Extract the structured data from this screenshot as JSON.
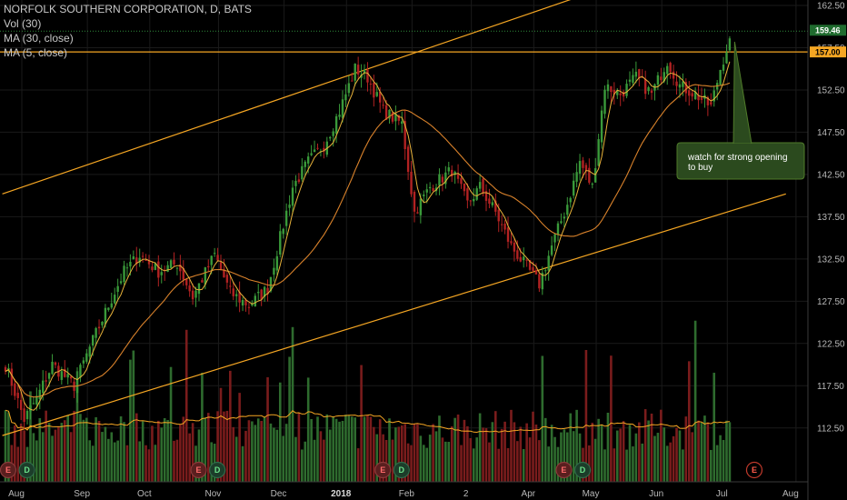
{
  "chart_data": {
    "type": "candlestick",
    "legend": {
      "symbol": "NORFOLK SOUTHERN CORPORATION, D, BATS",
      "vol": "Vol (30)",
      "ma30": "MA (30, close)",
      "ma5": "MA (5, close)"
    },
    "y_axis": {
      "range": [
        110,
        162.5
      ],
      "ticks": [
        "162.50",
        "157.50",
        "152.50",
        "147.50",
        "142.50",
        "137.50",
        "132.50",
        "127.50",
        "122.50",
        "117.50",
        "112.50"
      ]
    },
    "x_axis": {
      "labels": [
        {
          "text": "Aug",
          "bold": false,
          "i": 0
        },
        {
          "text": "Sep",
          "bold": false,
          "i": 21
        },
        {
          "text": "Oct",
          "bold": false,
          "i": 41
        },
        {
          "text": "Nov",
          "bold": false,
          "i": 63
        },
        {
          "text": "Dec",
          "bold": false,
          "i": 84
        },
        {
          "text": "2018",
          "bold": true,
          "i": 104
        },
        {
          "text": "Feb",
          "bold": false,
          "i": 125
        },
        {
          "text": "2",
          "bold": false,
          "i": 144
        },
        {
          "text": "Apr",
          "bold": false,
          "i": 164
        },
        {
          "text": "May",
          "bold": false,
          "i": 184
        },
        {
          "text": "Jun",
          "bold": false,
          "i": 205
        },
        {
          "text": "Jul",
          "bold": false,
          "i": 226
        },
        {
          "text": "Aug",
          "bold": false,
          "i": 248
        }
      ]
    },
    "price_tags": [
      {
        "text": "159.46",
        "value": 159.46,
        "bg": "#1f6b2e",
        "fg": "#ffffff"
      },
      {
        "text": "157.00",
        "value": 157.0,
        "bg": "#f5a623",
        "fg": "#000000"
      }
    ],
    "horizontal_level": 157.0,
    "trend_channel": {
      "upper": [
        {
          "i": -1,
          "p": 140.2
        },
        {
          "i": 200,
          "p": 165.6
        }
      ],
      "lower": [
        {
          "i": -1,
          "p": 111.6
        },
        {
          "i": 250,
          "p": 140.2
        }
      ]
    },
    "annotation": {
      "line1": "watch for strong opening",
      "line2": "to buy",
      "anchor_i": 233,
      "anchor_p": 158.2
    },
    "events": [
      {
        "label": "E",
        "i": 0,
        "type": "earnings-past"
      },
      {
        "label": "D",
        "i": 6,
        "type": "dividend"
      },
      {
        "label": "E",
        "i": 61,
        "type": "earnings-past"
      },
      {
        "label": "D",
        "i": 67,
        "type": "dividend"
      },
      {
        "label": "E",
        "i": 120,
        "type": "earnings-past"
      },
      {
        "label": "D",
        "i": 126,
        "type": "dividend"
      },
      {
        "label": "E",
        "i": 178,
        "type": "earnings-past"
      },
      {
        "label": "D",
        "i": 184,
        "type": "dividend"
      },
      {
        "label": "E",
        "i": 239,
        "type": "earnings-next"
      }
    ],
    "anchors": [
      {
        "i": 0,
        "p": 120
      },
      {
        "i": 6,
        "p": 113.5
      },
      {
        "i": 10,
        "p": 116
      },
      {
        "i": 15,
        "p": 120
      },
      {
        "i": 22,
        "p": 117.5
      },
      {
        "i": 27,
        "p": 122
      },
      {
        "i": 33,
        "p": 127
      },
      {
        "i": 38,
        "p": 131
      },
      {
        "i": 43,
        "p": 133
      },
      {
        "i": 49,
        "p": 131
      },
      {
        "i": 55,
        "p": 132
      },
      {
        "i": 60,
        "p": 128
      },
      {
        "i": 67,
        "p": 133
      },
      {
        "i": 72,
        "p": 128.5
      },
      {
        "i": 78,
        "p": 127
      },
      {
        "i": 84,
        "p": 129
      },
      {
        "i": 88,
        "p": 135
      },
      {
        "i": 92,
        "p": 141
      },
      {
        "i": 97,
        "p": 144
      },
      {
        "i": 102,
        "p": 146
      },
      {
        "i": 107,
        "p": 150
      },
      {
        "i": 112,
        "p": 155
      },
      {
        "i": 116,
        "p": 154
      },
      {
        "i": 121,
        "p": 150
      },
      {
        "i": 127,
        "p": 148.5
      },
      {
        "i": 131,
        "p": 138
      },
      {
        "i": 136,
        "p": 141
      },
      {
        "i": 143,
        "p": 143
      },
      {
        "i": 148,
        "p": 139
      },
      {
        "i": 152,
        "p": 141
      },
      {
        "i": 157,
        "p": 138
      },
      {
        "i": 162,
        "p": 134
      },
      {
        "i": 167,
        "p": 131.5
      },
      {
        "i": 171,
        "p": 129.5
      },
      {
        "i": 175,
        "p": 134
      },
      {
        "i": 180,
        "p": 139
      },
      {
        "i": 184,
        "p": 144
      },
      {
        "i": 188,
        "p": 141
      },
      {
        "i": 192,
        "p": 153
      },
      {
        "i": 197,
        "p": 152
      },
      {
        "i": 202,
        "p": 154
      },
      {
        "i": 207,
        "p": 152
      },
      {
        "i": 212,
        "p": 156
      },
      {
        "i": 216,
        "p": 153
      },
      {
        "i": 221,
        "p": 152
      },
      {
        "i": 226,
        "p": 150.5
      },
      {
        "i": 229,
        "p": 155
      },
      {
        "i": 232,
        "p": 158.6
      }
    ]
  }
}
